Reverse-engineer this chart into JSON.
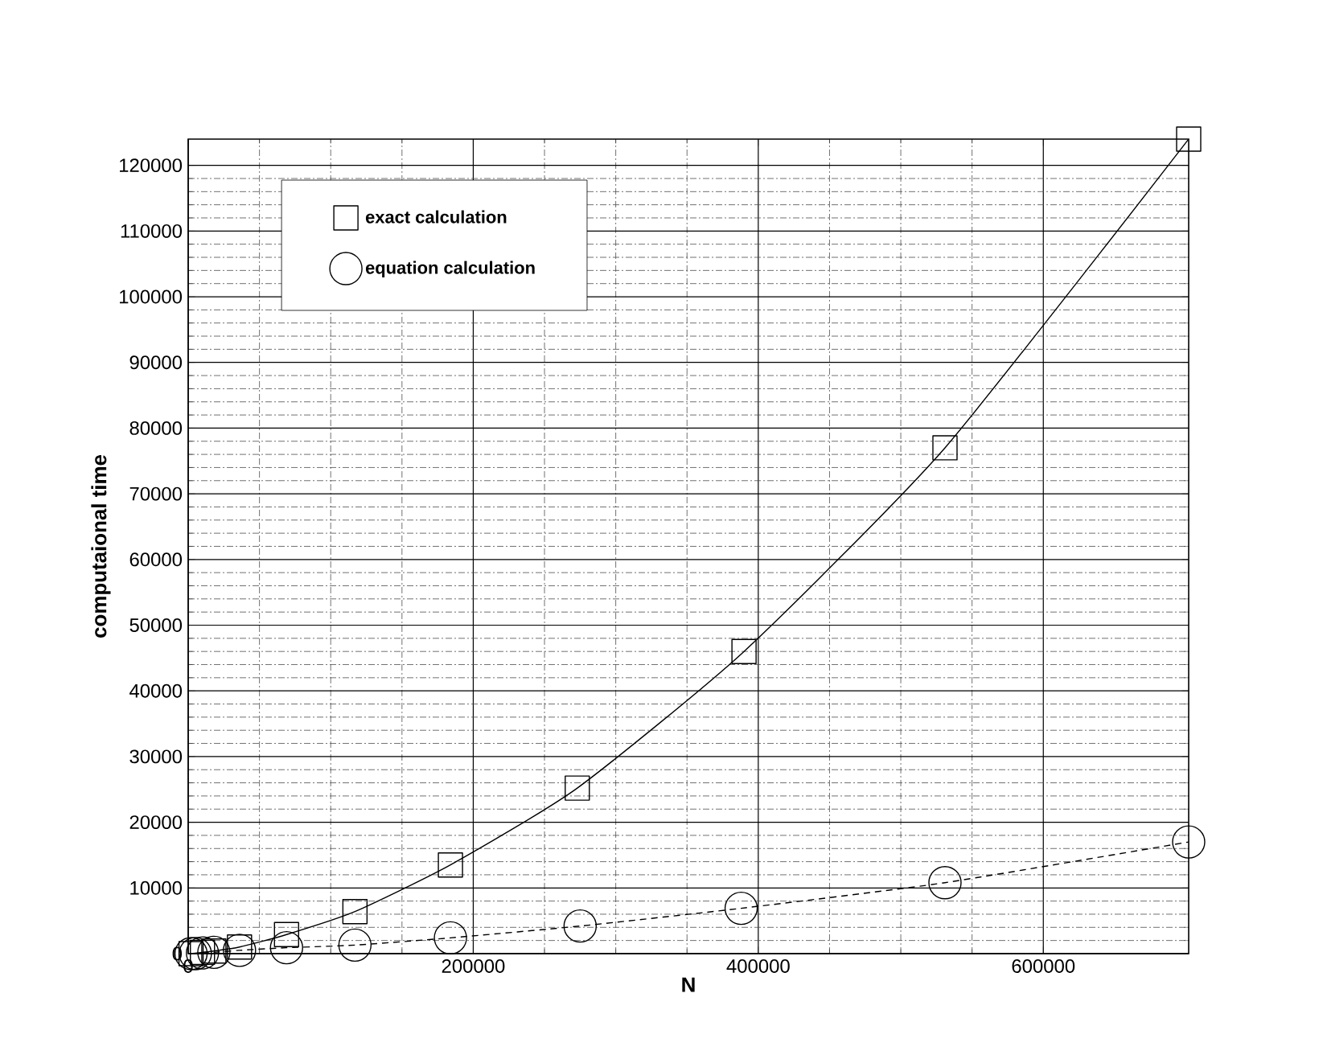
{
  "chart_data": {
    "type": "line",
    "xlabel": "N",
    "ylabel": "computaional time",
    "xlim": [
      0,
      702000
    ],
    "ylim": [
      0,
      124000
    ],
    "xticks": [
      0,
      200000,
      400000,
      600000
    ],
    "yticks": [
      0,
      10000,
      20000,
      30000,
      40000,
      50000,
      60000,
      70000,
      80000,
      90000,
      100000,
      110000,
      120000
    ],
    "grid": true,
    "legend": "top left",
    "series": [
      {
        "name": "exact calculation",
        "color": "#000000",
        "marker": "square",
        "line_style": "solid",
        "x": [
          2000,
          5000,
          10000,
          18000,
          36000,
          69000,
          117000,
          184000,
          273000,
          390000,
          531000,
          702000
        ],
        "values": [
          0,
          null,
          200,
          400,
          1000,
          2900,
          6400,
          13500,
          25200,
          46000,
          77000,
          124000
        ]
      },
      {
        "name": "equation calculation",
        "color": "#000000",
        "marker": "circle",
        "line_style": "dashed",
        "x": [
          2000,
          5000,
          10000,
          18000,
          36000,
          69000,
          117000,
          184000,
          275000,
          388000,
          531000,
          702000
        ],
        "values": [
          0,
          0,
          100,
          200,
          500,
          900,
          1300,
          2400,
          4200,
          6900,
          10800,
          17000
        ]
      }
    ]
  }
}
